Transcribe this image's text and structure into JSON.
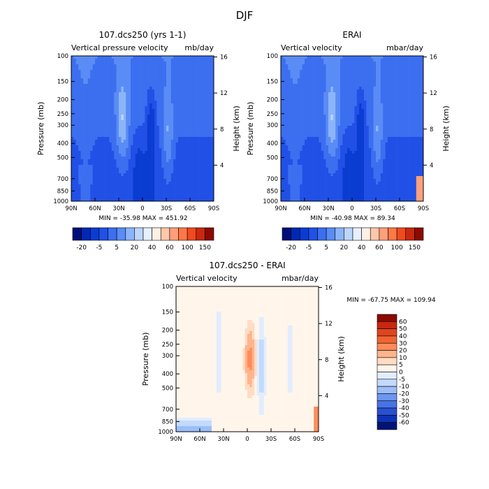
{
  "figure_title": "DJF",
  "chart_data": [
    {
      "type": "heatmap",
      "title": "107.dcs250 (yrs 1-1)",
      "subtitle_left": "Vertical pressure velocity",
      "subtitle_right": "mb/day",
      "ylabel_left": "Pressure (mb)",
      "ylabel_right": "Height (km)",
      "x_ticks": [
        "90N",
        "60N",
        "30N",
        "0",
        "30S",
        "60S",
        "90S"
      ],
      "y_ticks": [
        "100",
        "150",
        "200",
        "250",
        "300",
        "400",
        "500",
        "700",
        "850",
        "1000"
      ],
      "y_right_ticks": [
        "16",
        "12",
        "8",
        "4"
      ],
      "min_max_text": "MIN = -35.98   MAX = 451.92",
      "colorbar": {
        "labels": [
          "-20",
          "-5",
          "5",
          "20",
          "40",
          "60",
          "100",
          "150"
        ],
        "colors": [
          "#000f78",
          "#0028b4",
          "#0a3cd2",
          "#2050e6",
          "#3c6ef0",
          "#5a8cf5",
          "#8cb4fa",
          "#bcd6fc",
          "#e6f0ff",
          "#fff0e6",
          "#ffc8aa",
          "#ffa07a",
          "#ff7846",
          "#f04a1e",
          "#c82810",
          "#8c0a00"
        ]
      }
    },
    {
      "type": "heatmap",
      "title": "ERAI",
      "subtitle_left": "Vertical velocity",
      "subtitle_right": "mbar/day",
      "ylabel_left": "Pressure (mb)",
      "ylabel_right": "Height (km)",
      "x_ticks": [
        "90N",
        "60N",
        "30N",
        "0",
        "30S",
        "60S",
        "90S"
      ],
      "y_ticks": [
        "100",
        "150",
        "200",
        "250",
        "300",
        "400",
        "500",
        "700",
        "850",
        "1000"
      ],
      "y_right_ticks": [
        "16",
        "12",
        "8",
        "4"
      ],
      "min_max_text": "MIN = -40.98   MAX = 89.34",
      "colorbar": {
        "labels": [
          "-20",
          "-5",
          "5",
          "20",
          "40",
          "60",
          "100",
          "150"
        ],
        "colors": [
          "#000f78",
          "#0028b4",
          "#0a3cd2",
          "#2050e6",
          "#3c6ef0",
          "#5a8cf5",
          "#8cb4fa",
          "#bcd6fc",
          "#e6f0ff",
          "#fff0e6",
          "#ffc8aa",
          "#ffa07a",
          "#ff7846",
          "#f04a1e",
          "#c82810",
          "#8c0a00"
        ]
      }
    },
    {
      "type": "heatmap",
      "title": "107.dcs250 - ERAI",
      "subtitle_left": "Vertical velocity",
      "subtitle_right": "mbar/day",
      "ylabel_left": "Pressure (mb)",
      "ylabel_right": "Height (km)",
      "x_ticks": [
        "90N",
        "60N",
        "30N",
        "0",
        "30S",
        "60S",
        "90S"
      ],
      "y_ticks": [
        "100",
        "150",
        "200",
        "250",
        "300",
        "400",
        "500",
        "700",
        "850",
        "1000"
      ],
      "y_right_ticks": [
        "16",
        "12",
        "8",
        "4"
      ],
      "min_max_text": "MIN = -67.75   MAX = 109.94",
      "colorbar": {
        "labels": [
          "60",
          "50",
          "40",
          "30",
          "20",
          "10",
          "5",
          "0",
          "-5",
          "-10",
          "-20",
          "-30",
          "-40",
          "-50",
          "-60"
        ],
        "colors": [
          "#8c0a00",
          "#c82810",
          "#e0461e",
          "#f06432",
          "#ff8c5a",
          "#ffb48c",
          "#ffdcc3",
          "#fff5eb",
          "#e1edff",
          "#c3dafc",
          "#9bbef8",
          "#6e96f0",
          "#4673e6",
          "#2850d2",
          "#0f32b4",
          "#001478"
        ]
      }
    }
  ]
}
